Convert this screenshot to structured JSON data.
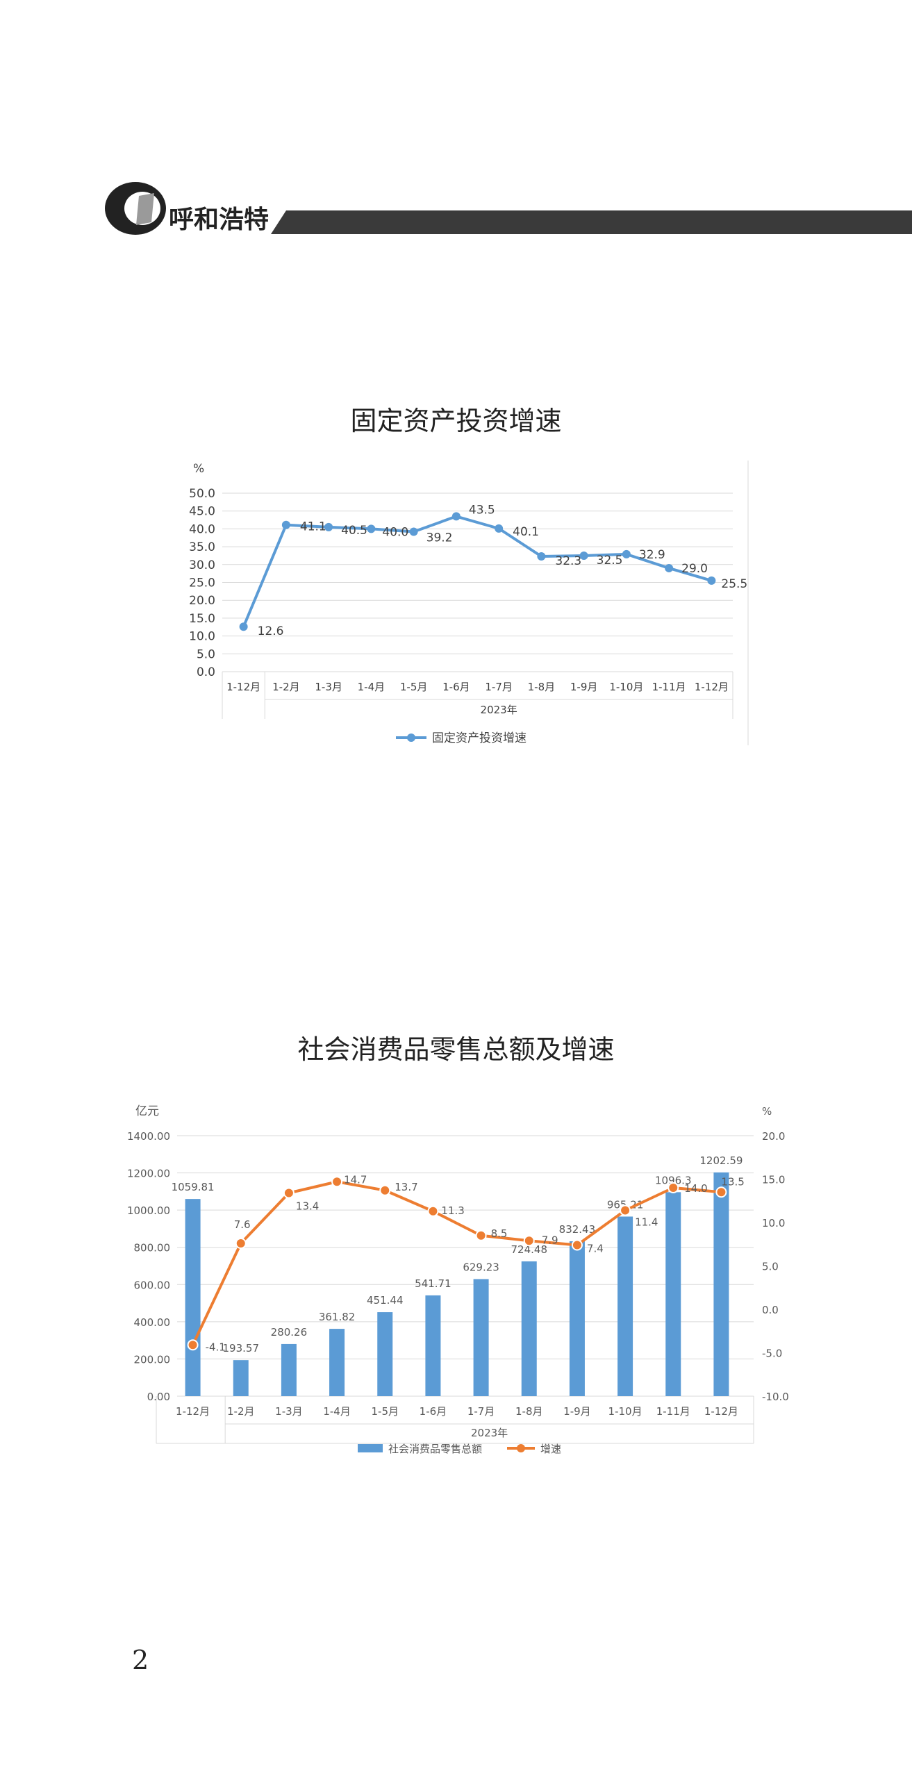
{
  "header": {
    "brand": "呼和浩特"
  },
  "page_number": "2",
  "chart_data": [
    {
      "type": "line",
      "title": "固定资产投资增速",
      "ylabel": "%",
      "ylim": [
        0,
        50
      ],
      "yticks": [
        "0.0",
        "5.0",
        "10.0",
        "15.0",
        "20.0",
        "25.0",
        "30.0",
        "35.0",
        "40.0",
        "45.0",
        "50.0"
      ],
      "group_labels": [
        "",
        "2023年"
      ],
      "categories": [
        "1-12月",
        "1-2月",
        "1-3月",
        "1-4月",
        "1-5月",
        "1-6月",
        "1-7月",
        "1-8月",
        "1-9月",
        "1-10月",
        "1-11月",
        "1-12月"
      ],
      "series": [
        {
          "name": "固定资产投资增速",
          "values": [
            12.6,
            41.1,
            40.5,
            40.0,
            39.2,
            43.5,
            40.1,
            32.3,
            32.5,
            32.9,
            29.0,
            25.5
          ],
          "labels": [
            "12.6",
            "41.1",
            "40.5",
            "40.0",
            "39.2",
            "43.5",
            "40.1",
            "32.3",
            "32.5",
            "32.9",
            "29.0",
            "25.5"
          ],
          "color": "#5b9bd5"
        }
      ],
      "legend_position": "bottom",
      "grid": true
    },
    {
      "type": "bar",
      "title": "社会消费品零售总额及增速",
      "ylabel_left": "亿元",
      "ylabel_right": "%",
      "ylim_left": [
        0,
        1400
      ],
      "ylim_right": [
        -10,
        20
      ],
      "yticks_left": [
        "0.00",
        "200.00",
        "400.00",
        "600.00",
        "800.00",
        "1000.00",
        "1200.00",
        "1400.00"
      ],
      "yticks_right": [
        "-10.0",
        "-5.0",
        "0.0",
        "5.0",
        "10.0",
        "15.0",
        "20.0"
      ],
      "group_labels": [
        "",
        "2023年"
      ],
      "categories": [
        "1-12月",
        "1-2月",
        "1-3月",
        "1-4月",
        "1-5月",
        "1-6月",
        "1-7月",
        "1-8月",
        "1-9月",
        "1-10月",
        "1-11月",
        "1-12月"
      ],
      "series": [
        {
          "name": "社会消费品零售总额",
          "type": "bar",
          "axis": "left",
          "color": "#5b9bd5",
          "values": [
            1059.81,
            193.57,
            280.26,
            361.82,
            451.44,
            541.71,
            629.23,
            724.48,
            832.43,
            965.21,
            1096.3,
            1202.59
          ],
          "labels": [
            "1059.81",
            "193.57",
            "280.26",
            "361.82",
            "451.44",
            "541.71",
            "629.23",
            "724.48",
            "832.43",
            "965.21",
            "1096.3",
            "1202.59"
          ]
        },
        {
          "name": "增速",
          "type": "line",
          "axis": "right",
          "color": "#ed7d31",
          "values": [
            -4.1,
            7.6,
            13.4,
            14.7,
            13.7,
            11.3,
            8.5,
            7.9,
            7.4,
            11.4,
            14.0,
            13.5
          ],
          "labels": [
            "-4.1",
            "7.6",
            "13.4",
            "14.7",
            "13.7",
            "11.3",
            "8.5",
            "7.9",
            "7.4",
            "11.4",
            "14.0",
            "13.5"
          ]
        }
      ],
      "legend_position": "bottom",
      "grid": true
    }
  ]
}
